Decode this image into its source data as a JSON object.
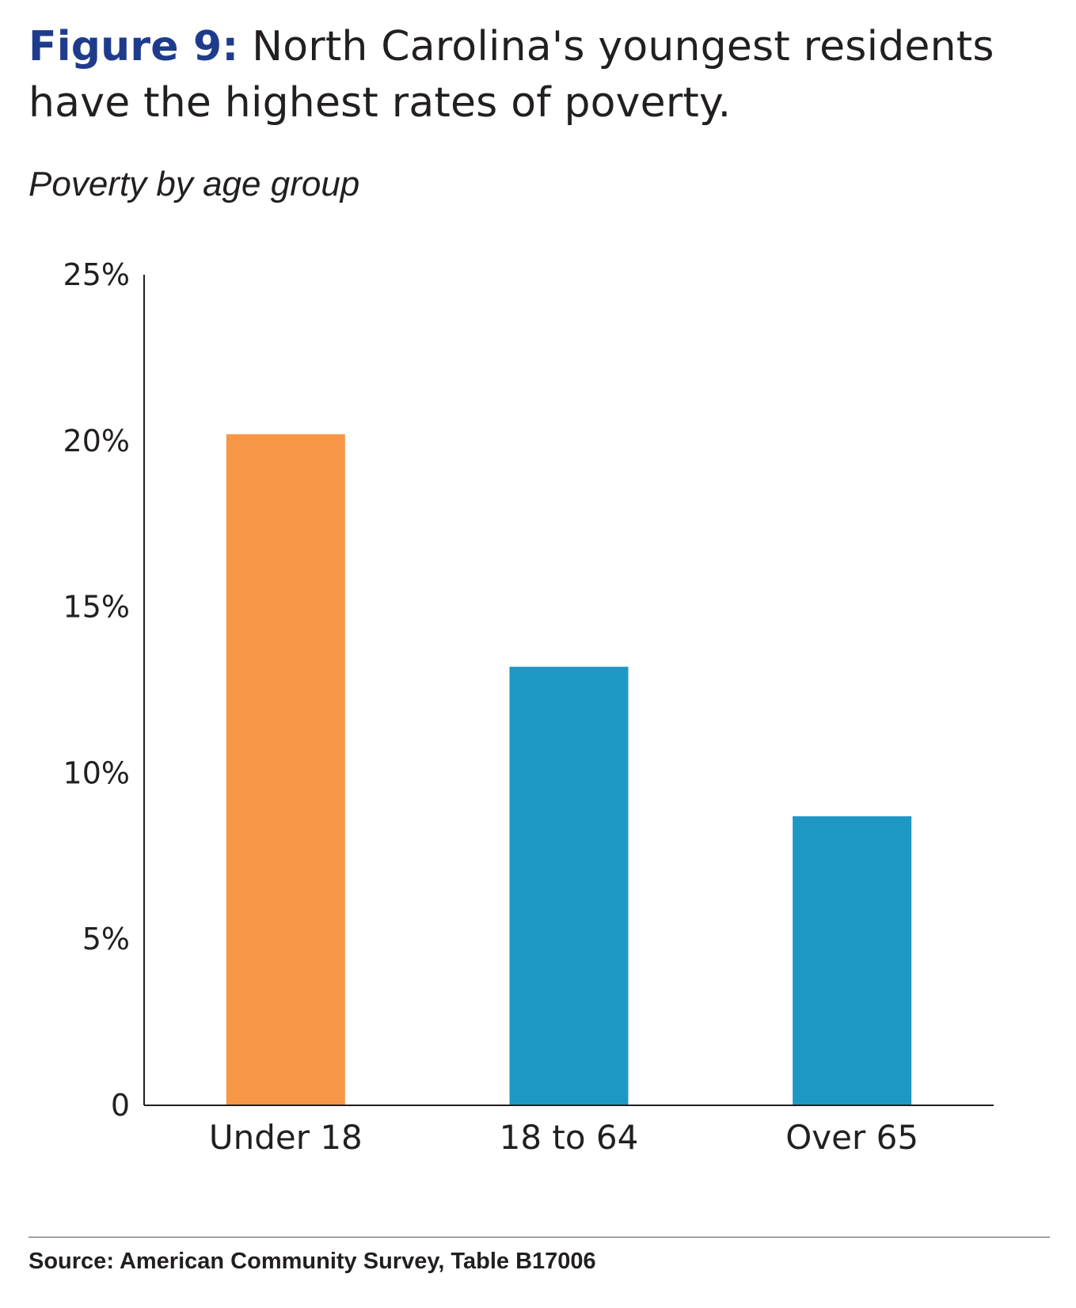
{
  "header": {
    "figure_label": "Figure 9:",
    "title": "North Carolina's youngest residents have the highest rates of poverty.",
    "subtitle": "Poverty by age group"
  },
  "source": "Source: American Community Survey, Table B17006",
  "colors": {
    "title_accent": "#1f3c8c",
    "highlight_bar": "#f79646",
    "bar": "#1f97c3",
    "text": "#231f20"
  },
  "chart_data": {
    "type": "bar",
    "title": "Poverty by age group",
    "categories": [
      "Under 18",
      "18 to 64",
      "Over 65"
    ],
    "values": [
      20.2,
      13.2,
      8.7
    ],
    "unit": "%",
    "ylim": [
      0,
      25
    ],
    "yticks": [
      0,
      5,
      10,
      15,
      20,
      25
    ],
    "ytick_labels": [
      "0",
      "5%",
      "10%",
      "15%",
      "20%",
      "25%"
    ],
    "bar_colors": [
      "#f79646",
      "#1f97c3",
      "#1f97c3"
    ],
    "grid": false,
    "legend": "none",
    "xlabel": "",
    "ylabel": ""
  }
}
